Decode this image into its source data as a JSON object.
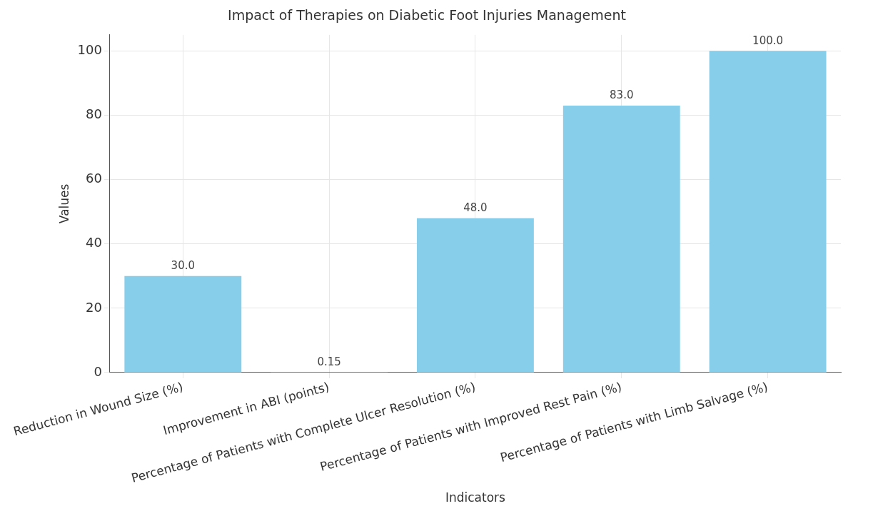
{
  "chart_data": {
    "type": "bar",
    "title": "Impact of Therapies on Diabetic Foot Injuries Management",
    "xlabel": "Indicators",
    "ylabel": "Values",
    "categories": [
      "Reduction in Wound Size (%)",
      "Improvement in ABI (points)",
      "Percentage of Patients with Complete Ulcer Resolution (%)",
      "Percentage of Patients with Improved Rest Pain (%)",
      "Percentage of Patients with Limb Salvage (%)"
    ],
    "values": [
      30.0,
      0.15,
      48.0,
      83.0,
      100.0
    ],
    "value_labels": [
      "30.0",
      "0.15",
      "48.0",
      "83.0",
      "100.0"
    ],
    "color": "#87ceeb",
    "ylim": [
      0,
      105
    ],
    "yticks": [
      0,
      20,
      40,
      60,
      80,
      100
    ],
    "grid": true
  }
}
